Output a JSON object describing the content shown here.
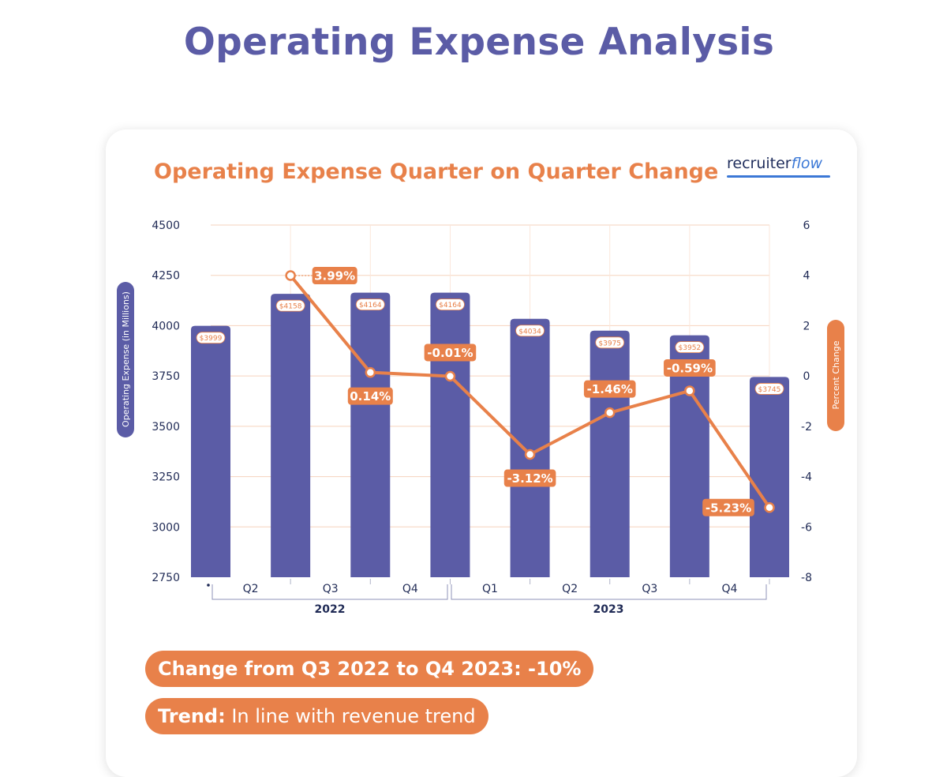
{
  "page_title": "Operating Expense Analysis",
  "logo": {
    "main": "recruiter",
    "accent": "flow"
  },
  "chart_data": {
    "type": "bar",
    "title": "Operating Expense Quarter on Quarter Change",
    "ylabel": "Operating Expense (in Millions)",
    "y2label": "Percent Change",
    "ylim": [
      2750,
      4500
    ],
    "y_ticks": [
      4500,
      4250,
      4000,
      3750,
      3500,
      3250,
      3000,
      2750
    ],
    "y2lim": [
      -8,
      6
    ],
    "y2_ticks": [
      6,
      4,
      2,
      0,
      -2,
      -4,
      -6,
      -8
    ],
    "quarters": [
      "",
      "Q2",
      "Q3",
      "Q4",
      "Q1",
      "Q2",
      "Q3",
      "Q4"
    ],
    "years": [
      {
        "label": "2022",
        "span": [
          1,
          3
        ]
      },
      {
        "label": "2023",
        "span": [
          4,
          7
        ]
      }
    ],
    "series": [
      {
        "name": "Operating Expense",
        "type": "bar",
        "color": "#5b5ca6",
        "values": [
          3999,
          4158,
          4164,
          4164,
          4034,
          3975,
          3952,
          3745
        ],
        "labels": [
          "$3999",
          "$4158",
          "$4164",
          "$4164",
          "$4034",
          "$3975",
          "$3952",
          "$3745"
        ]
      },
      {
        "name": "Percent Change",
        "type": "line",
        "color": "#e8814a",
        "values": [
          3.99,
          0.14,
          -0.01,
          -3.12,
          -1.46,
          -0.59,
          -5.23
        ],
        "labels": [
          "3.99%",
          "0.14%",
          "-0.01%",
          "-3.12%",
          "-1.46%",
          "-0.59%",
          "-5.23%"
        ]
      }
    ]
  },
  "summary": {
    "change": "Change from Q3 2022 to Q4 2023: -10%",
    "trend_label": "Trend:",
    "trend_text": " In line with revenue trend"
  }
}
